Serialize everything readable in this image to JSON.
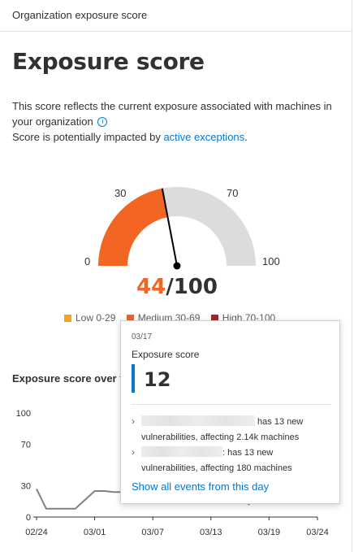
{
  "header": {
    "title": "Organization exposure score"
  },
  "main": {
    "title": "Exposure score",
    "description_line1": "This score reflects the current exposure associated with machines in your organization",
    "description_line2": "Score is potentially impacted by ",
    "exceptions_link": "active exceptions",
    "exceptions_suffix": ".",
    "info_icon": "info-icon"
  },
  "gauge": {
    "score": "44",
    "max": "/100",
    "value": 44,
    "ticks": {
      "t0": "0",
      "t30": "30",
      "t70": "70",
      "t100": "100"
    },
    "colors": {
      "medium": "#f26522",
      "track": "#dcdcdc"
    }
  },
  "legend": [
    {
      "label": "Low 0-29",
      "color": "#f6a21a"
    },
    {
      "label": "Medium 30-69",
      "color": "#e8652b"
    },
    {
      "label": "High 70-100",
      "color": "#a4262c"
    }
  ],
  "chart_title": "Exposure score over time",
  "chart_data": {
    "type": "line",
    "x": [
      "02/24",
      "02/25",
      "02/26",
      "02/27",
      "02/28",
      "03/01",
      "03/02",
      "03/03",
      "03/04",
      "03/05",
      "03/06",
      "03/07",
      "03/08",
      "03/09",
      "03/10",
      "03/11",
      "03/12",
      "03/13",
      "03/14",
      "03/15",
      "03/16",
      "03/17"
    ],
    "y": [
      27,
      8,
      8,
      8,
      8,
      25,
      25,
      24,
      24,
      17,
      16,
      16,
      14,
      14,
      20,
      18,
      18,
      18,
      17,
      17,
      17,
      12
    ],
    "xticks": [
      "02/24",
      "03/01",
      "03/07",
      "03/13",
      "03/19",
      "03/24"
    ],
    "yticks": [
      "0",
      "30",
      "70",
      "100"
    ],
    "ylim": [
      0,
      100
    ],
    "color": "#808080"
  },
  "tooltip": {
    "date": "03/17",
    "label": "Exposure score",
    "value": "12",
    "events": [
      {
        "text_before": "",
        "text_after": " has 13 new vulnerabilities, affecting 2.14k machines"
      },
      {
        "text_before": "",
        "text_after": ": has 13 new vulnerabilities, affecting 180 machines"
      }
    ],
    "link": "Show all events from this day"
  }
}
